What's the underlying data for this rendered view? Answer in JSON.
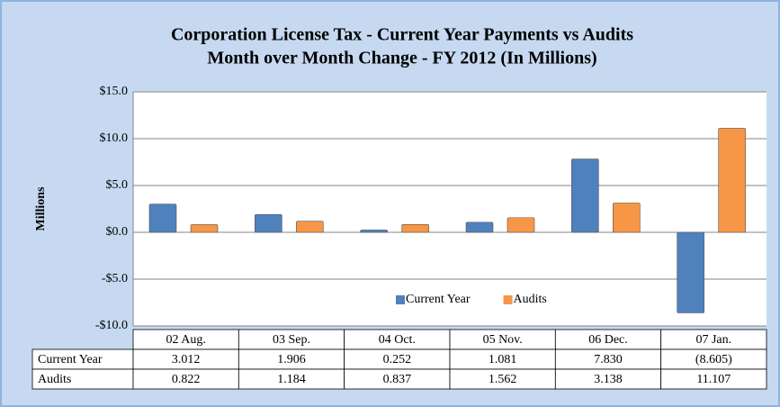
{
  "chart_data": {
    "type": "bar",
    "title": "Corporation License Tax - Current Year Payments vs Audits",
    "subtitle": "Month over Month Change - FY 2012 (In Millions)",
    "y_label": "Millions",
    "categories": [
      "02 Aug.",
      "03 Sep.",
      "04 Oct.",
      "05 Nov.",
      "06 Dec.",
      "07 Jan."
    ],
    "series": [
      {
        "name": "Current Year",
        "color": "#4f81bd",
        "values": [
          3.012,
          1.906,
          0.252,
          1.081,
          7.83,
          -8.605
        ],
        "value_labels": [
          "3.012",
          "1.906",
          "0.252",
          "1.081",
          "7.830",
          "(8.605)"
        ]
      },
      {
        "name": "Audits",
        "color": "#f79646",
        "values": [
          0.822,
          1.184,
          0.837,
          1.562,
          3.138,
          11.107
        ],
        "value_labels": [
          "0.822",
          "1.184",
          "0.837",
          "1.562",
          "3.138",
          "11.107"
        ]
      }
    ],
    "ylim": [
      -10,
      15
    ],
    "yticks": [
      {
        "value": -10,
        "label": "-$10.0"
      },
      {
        "value": -5,
        "label": "-$5.0"
      },
      {
        "value": 0,
        "label": "$0.0"
      },
      {
        "value": 5,
        "label": "$5.0"
      },
      {
        "value": 10,
        "label": "$10.0"
      },
      {
        "value": 15,
        "label": "$15.0"
      }
    ],
    "grid": true,
    "legend": "lower center"
  }
}
